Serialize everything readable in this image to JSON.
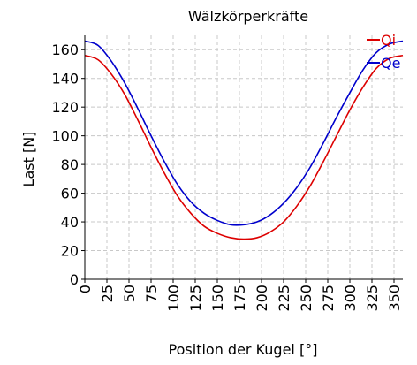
{
  "chart_data": {
    "type": "line",
    "title": "Wälzkörperkräfte",
    "xlabel": "Position der Kugel [°]",
    "ylabel": "Last [N]",
    "xlim": [
      0,
      360
    ],
    "ylim": [
      0,
      170
    ],
    "xticks": [
      0,
      25,
      50,
      75,
      100,
      125,
      150,
      175,
      200,
      225,
      250,
      275,
      300,
      325,
      350
    ],
    "yticks": [
      0,
      20,
      40,
      60,
      80,
      100,
      120,
      140,
      160
    ],
    "grid": true,
    "legend_position": "top-right",
    "series": [
      {
        "name": "Qi",
        "color": "#dd0000",
        "x": [
          0,
          15,
          30,
          45,
          60,
          75,
          90,
          105,
          120,
          135,
          150,
          165,
          180,
          195,
          210,
          225,
          240,
          255,
          270,
          285,
          300,
          315,
          330,
          345,
          360
        ],
        "y": [
          156,
          153,
          143,
          129,
          111,
          92,
          74,
          58,
          46,
          37,
          32,
          29,
          28,
          29,
          33,
          40,
          51,
          65,
          82,
          100,
          118,
          134,
          147,
          154,
          156
        ]
      },
      {
        "name": "Qe",
        "color": "#0000cc",
        "x": [
          0,
          15,
          30,
          45,
          60,
          75,
          90,
          105,
          120,
          135,
          150,
          165,
          180,
          195,
          210,
          225,
          240,
          255,
          270,
          285,
          300,
          315,
          330,
          345,
          360
        ],
        "y": [
          166,
          163,
          152,
          137,
          119,
          100,
          82,
          66,
          54,
          46,
          41,
          38,
          38,
          40,
          45,
          53,
          64,
          78,
          95,
          113,
          130,
          146,
          158,
          164,
          166
        ]
      }
    ]
  }
}
